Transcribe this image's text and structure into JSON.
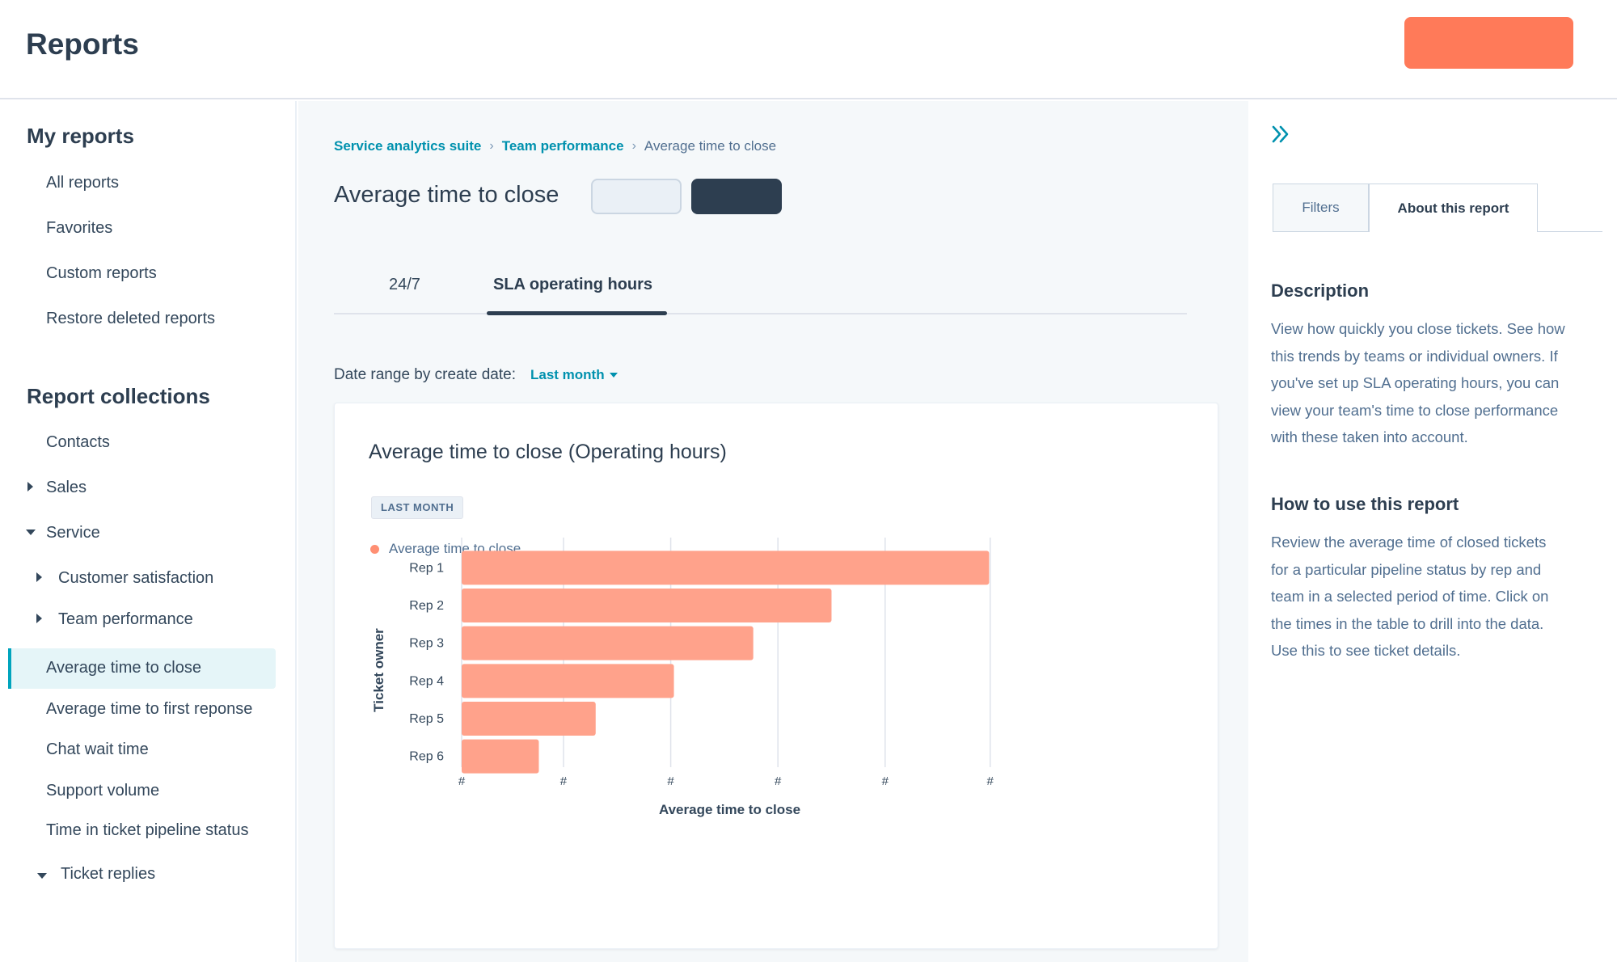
{
  "header": {
    "title": "Reports",
    "primary_button_label": ""
  },
  "sidebar": {
    "my_reports_heading": "My reports",
    "my_reports": [
      "All reports",
      "Favorites",
      "Custom reports",
      "Restore deleted reports"
    ],
    "collections_heading": "Report collections",
    "collections": {
      "contacts": "Contacts",
      "sales": "Sales",
      "service": "Service",
      "customer_satisfaction": "Customer satisfaction",
      "team_performance": "Team performance",
      "avg_time_to_close": "Average time to close",
      "avg_time_first_response": "Average time to first reponse",
      "chat_wait_time": "Chat wait time",
      "support_volume": "Support volume",
      "time_in_pipeline": "Time in ticket pipeline status",
      "ticket_replies": "Ticket replies"
    }
  },
  "main": {
    "breadcrumb": [
      "Service analytics suite",
      "Team performance",
      "Average time to close"
    ],
    "page_title": "Average time to close",
    "tabs": [
      "24/7",
      "SLA operating hours"
    ],
    "active_tab": "SLA operating hours",
    "date_range_label": "Date range by create date:",
    "date_range_value": "Last month",
    "card": {
      "title": "Average time to close (Operating hours)",
      "badge": "LAST MONTH",
      "legend": "Average time to close"
    }
  },
  "chart_data": {
    "type": "bar",
    "orientation": "horizontal",
    "title": "Average time to close (Operating hours)",
    "categories": [
      "Rep 1",
      "Rep 2",
      "Rep 3",
      "Rep 4",
      "Rep 5",
      "Rep 6"
    ],
    "values": [
      4.92,
      3.45,
      2.72,
      1.98,
      1.25,
      0.72
    ],
    "series": [
      {
        "name": "Average time to close",
        "values": [
          4.92,
          3.45,
          2.72,
          1.98,
          1.25,
          0.72
        ]
      }
    ],
    "xlabel": "Average time to close",
    "ylabel": "Ticket owner",
    "xlim": [
      0,
      5
    ],
    "x_ticks": [
      0,
      0.95,
      1.95,
      2.95,
      3.95,
      4.93
    ],
    "x_tick_labels": [
      "#",
      "#",
      "#",
      "#",
      "#",
      "#"
    ],
    "grid": true,
    "color": "#ffa28b"
  },
  "right_panel": {
    "tabs": [
      "Filters",
      "About this report"
    ],
    "description_heading": "Description",
    "description_lines": [
      "View how quickly you close tickets. See how",
      "this trends by teams or individual owners. If",
      "you've set up SLA operating hours, you can",
      "view your team's time to close performance",
      "with these taken into account."
    ],
    "howto_heading": "How to use this report",
    "howto_lines": [
      "Review the average time of closed tickets",
      "for a particular pipeline status by rep and",
      "team in a selected period of time. Click on",
      "the times in the table to drill into the data.",
      "Use this to see ticket details."
    ]
  },
  "colors": {
    "accent": "#ff7a59",
    "link": "#0091ae",
    "bar": "#ffa28b",
    "dark": "#2d3e50"
  }
}
